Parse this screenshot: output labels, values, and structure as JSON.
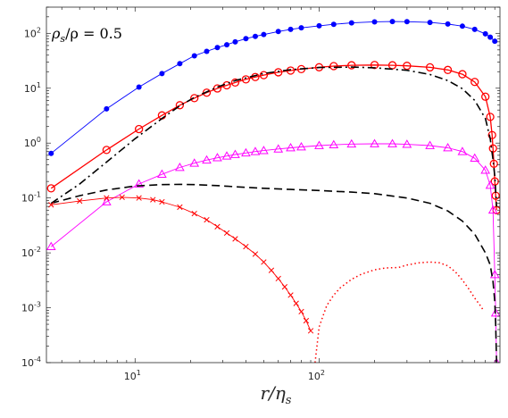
{
  "chart_data": {
    "type": "line",
    "title": "",
    "annotation": {
      "base": "ρ",
      "sub": "s",
      "rest": "/ρ = 0.5"
    },
    "xlabel": {
      "base": "r/η",
      "sub": "s"
    },
    "ylabel": "",
    "xscale": "log",
    "yscale": "log",
    "xlim": [
      3.3,
      960
    ],
    "ylim": [
      0.0001,
      300
    ],
    "grid": false,
    "legend": "none",
    "x_ticks": [
      {
        "base": "10",
        "exp": "1",
        "value": 10
      },
      {
        "base": "10",
        "exp": "2",
        "value": 100
      }
    ],
    "y_ticks": [
      {
        "base": "10",
        "exp": "-4",
        "value": 0.0001
      },
      {
        "base": "10",
        "exp": "-3",
        "value": 0.001
      },
      {
        "base": "10",
        "exp": "-2",
        "value": 0.01
      },
      {
        "base": "10",
        "exp": "-1",
        "value": 0.1
      },
      {
        "base": "10",
        "exp": "0",
        "value": 1
      },
      {
        "base": "10",
        "exp": "1",
        "value": 10
      },
      {
        "base": "10",
        "exp": "2",
        "value": 100
      }
    ],
    "series": [
      {
        "color": "#0000ff",
        "style": "solid",
        "marker": "filled-circle",
        "width": 0.9,
        "x": [
          3.5,
          7,
          10.5,
          14,
          17.5,
          21,
          24.5,
          28,
          31.5,
          35,
          40,
          45,
          50,
          60,
          70,
          80,
          100,
          120,
          150,
          200,
          250,
          300,
          400,
          500,
          600,
          700,
          800,
          850,
          900
        ],
        "y": [
          0.65,
          4.2,
          10.5,
          18.5,
          28,
          39,
          47,
          55,
          62,
          70,
          80,
          88,
          95,
          108,
          118,
          126,
          137,
          146,
          155,
          162,
          164,
          163,
          158,
          148,
          135,
          118,
          98,
          85,
          72
        ]
      },
      {
        "color": "#ff0000",
        "style": "solid",
        "marker": "open-circle",
        "width": 1.3,
        "x": [
          3.5,
          7,
          10.5,
          14,
          17.5,
          21,
          24.5,
          28,
          31.5,
          35,
          40,
          45,
          50,
          60,
          70,
          80,
          100,
          120,
          150,
          200,
          250,
          300,
          400,
          500,
          600,
          700,
          800,
          850,
          870,
          880,
          890,
          900,
          910,
          920
        ],
        "y": [
          0.15,
          0.75,
          1.8,
          3.2,
          4.9,
          6.6,
          8.3,
          9.9,
          11.3,
          12.7,
          14.5,
          16,
          17.3,
          19.5,
          21,
          22.3,
          24.1,
          25.3,
          26.2,
          26.5,
          26.2,
          25.6,
          24,
          21.5,
          18,
          13,
          7,
          3,
          1.4,
          0.8,
          0.42,
          0.2,
          0.11,
          0.06
        ]
      },
      {
        "color": "#000000",
        "style": "dashdot",
        "marker": "none",
        "width": 1.6,
        "x": [
          3.5,
          5,
          7,
          10,
          14,
          17.5,
          21,
          28,
          35,
          50,
          70,
          100,
          150,
          200,
          300,
          400,
          500,
          600,
          700,
          800,
          850,
          880,
          900,
          910,
          920
        ],
        "y": [
          0.08,
          0.18,
          0.45,
          1.2,
          2.8,
          4.8,
          6.8,
          10.5,
          13.8,
          18.5,
          21.8,
          23.8,
          24.3,
          23.6,
          21.2,
          17.8,
          13.8,
          9.8,
          6,
          2.8,
          1.2,
          0.5,
          0.25,
          0.13,
          0.07
        ]
      },
      {
        "color": "#ff00ff",
        "style": "solid",
        "marker": "open-triangle",
        "width": 0.9,
        "x": [
          3.5,
          7,
          10.5,
          14,
          17.5,
          21,
          24.5,
          28,
          31.5,
          35,
          40,
          45,
          50,
          60,
          70,
          80,
          100,
          120,
          150,
          200,
          250,
          300,
          400,
          500,
          600,
          700,
          800,
          850,
          880,
          900,
          910,
          920
        ],
        "y": [
          0.013,
          0.085,
          0.18,
          0.27,
          0.36,
          0.43,
          0.49,
          0.54,
          0.58,
          0.62,
          0.66,
          0.7,
          0.73,
          0.78,
          0.82,
          0.85,
          0.9,
          0.93,
          0.96,
          0.97,
          0.97,
          0.95,
          0.9,
          0.82,
          0.7,
          0.53,
          0.32,
          0.17,
          0.06,
          0.004,
          0.0008,
          0.0001
        ]
      },
      {
        "color": "#000000",
        "style": "dashed",
        "marker": "none",
        "width": 1.6,
        "x": [
          3.5,
          5,
          7,
          10,
          14,
          17.5,
          21,
          28,
          35,
          50,
          70,
          100,
          150,
          200,
          300,
          400,
          500,
          600,
          700,
          800,
          850,
          880,
          900,
          910,
          920
        ],
        "y": [
          0.08,
          0.11,
          0.14,
          0.165,
          0.175,
          0.177,
          0.175,
          0.168,
          0.16,
          0.15,
          0.143,
          0.137,
          0.128,
          0.12,
          0.1,
          0.08,
          0.058,
          0.038,
          0.022,
          0.01,
          0.006,
          0.003,
          0.0013,
          0.0005,
          0.0001
        ]
      },
      {
        "color": "#ff0000",
        "style": "solid",
        "marker": "cross",
        "width": 0.9,
        "x": [
          3.5,
          5,
          7,
          8.5,
          10.5,
          12.5,
          14,
          17.5,
          21,
          24.5,
          28,
          31.5,
          35,
          40,
          45,
          50,
          55,
          60,
          65,
          70,
          75,
          80,
          85,
          90
        ],
        "y": [
          0.075,
          0.088,
          0.1,
          0.103,
          0.1,
          0.093,
          0.085,
          0.068,
          0.052,
          0.04,
          0.03,
          0.023,
          0.018,
          0.013,
          0.0095,
          0.0068,
          0.0048,
          0.0034,
          0.0024,
          0.0017,
          0.0012,
          0.00085,
          0.00058,
          0.00038
        ]
      },
      {
        "color": "#ff0000",
        "style": "dotted",
        "marker": "none",
        "width": 1.5,
        "x": [
          95,
          100,
          110,
          120,
          130,
          150,
          170,
          200,
          230,
          270,
          300,
          350,
          400,
          450,
          500,
          550,
          600,
          650,
          700,
          750,
          780
        ],
        "y": [
          0.0001,
          0.00045,
          0.0011,
          0.0017,
          0.0023,
          0.0033,
          0.0041,
          0.0049,
          0.0053,
          0.0054,
          0.006,
          0.0066,
          0.0068,
          0.0066,
          0.0058,
          0.0045,
          0.0032,
          0.0022,
          0.0015,
          0.0011,
          0.0009
        ]
      }
    ]
  }
}
